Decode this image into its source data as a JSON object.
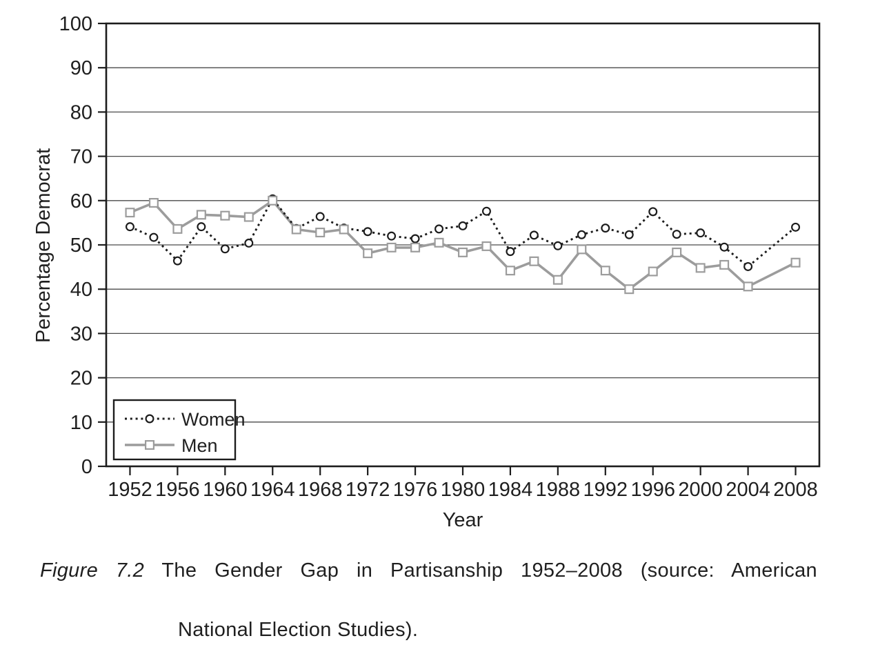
{
  "figure": {
    "caption": {
      "figure_label": "Figure 7.2",
      "line1_rest": "The Gender Gap in Partisanship 1952–2008 (source: American",
      "line2": "National Election Studies)."
    }
  },
  "chart_data": {
    "type": "line",
    "title": "",
    "xlabel": "Year",
    "ylabel": "Percentage Democrat",
    "xlim": [
      1950,
      2010
    ],
    "ylim": [
      0,
      100
    ],
    "x_ticks": [
      1952,
      1956,
      1960,
      1964,
      1968,
      1972,
      1976,
      1980,
      1984,
      1988,
      1992,
      1996,
      2000,
      2004,
      2008
    ],
    "y_ticks": [
      0,
      10,
      20,
      30,
      40,
      50,
      60,
      70,
      80,
      90,
      100
    ],
    "grid": "horizontal-only",
    "legend": {
      "position": "lower-left",
      "entries": [
        "Women",
        "Men"
      ]
    },
    "x": [
      1952,
      1954,
      1956,
      1958,
      1960,
      1962,
      1964,
      1966,
      1968,
      1970,
      1972,
      1974,
      1976,
      1978,
      1980,
      1982,
      1984,
      1986,
      1988,
      1990,
      1992,
      1994,
      1996,
      1998,
      2000,
      2002,
      2004,
      2008
    ],
    "series": [
      {
        "name": "Women",
        "marker": "circle",
        "line_style": "dotted",
        "color": "#1c1c1c",
        "values": [
          54.1,
          51.7,
          46.4,
          54.1,
          49.1,
          50.4,
          60.4,
          53.7,
          56.4,
          53.8,
          53.0,
          52.0,
          51.4,
          53.6,
          54.3,
          57.6,
          48.5,
          52.2,
          49.8,
          52.3,
          53.8,
          52.3,
          57.5,
          52.4,
          52.7,
          49.5,
          45.1,
          54.0
        ]
      },
      {
        "name": "Men",
        "marker": "square",
        "line_style": "solid",
        "color": "#9c9c9c",
        "values": [
          57.3,
          59.5,
          53.6,
          56.8,
          56.6,
          56.3,
          60.0,
          53.5,
          52.8,
          53.5,
          48.1,
          49.4,
          49.4,
          50.5,
          48.3,
          49.7,
          44.2,
          46.3,
          42.1,
          49.0,
          44.2,
          40.0,
          44.0,
          48.3,
          44.8,
          45.5,
          40.6,
          46.0
        ]
      }
    ],
    "colors": {
      "frame": "#1c1c1c",
      "gridline": "#4a4a4a",
      "text": "#1f1f1f",
      "marker_fill": "#ffffff"
    }
  }
}
